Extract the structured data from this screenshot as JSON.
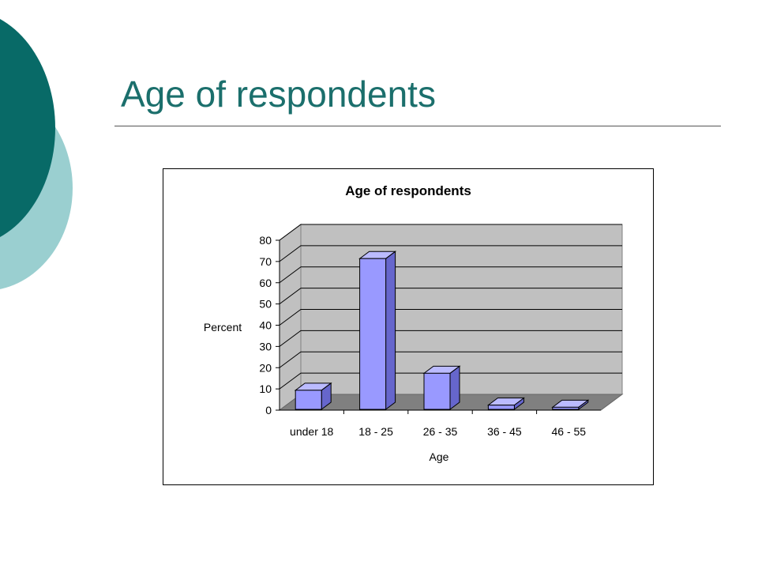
{
  "slide": {
    "title": "Age of respondents",
    "accent_colors": {
      "dark_teal": "#086a67",
      "light_teal": "#9acfd0",
      "title": "#1b6f6c"
    }
  },
  "chart_data": {
    "type": "bar",
    "title": "Age of respondents",
    "xlabel": "Age",
    "ylabel": "Percent",
    "categories": [
      "under 18",
      "18 - 25",
      "26 - 35",
      "36 - 45",
      "46 - 55"
    ],
    "values": [
      9,
      71,
      17,
      2,
      1
    ],
    "ylim": [
      0,
      80
    ],
    "yticks": [
      0,
      10,
      20,
      30,
      40,
      50,
      60,
      70,
      80
    ],
    "grid": true,
    "style": "3d-column",
    "colors": {
      "bar_front": "#9999ff",
      "bar_side": "#6666cc",
      "bar_top": "#bbbbff",
      "wall": "#c0c0c0",
      "floor": "#808080"
    }
  }
}
